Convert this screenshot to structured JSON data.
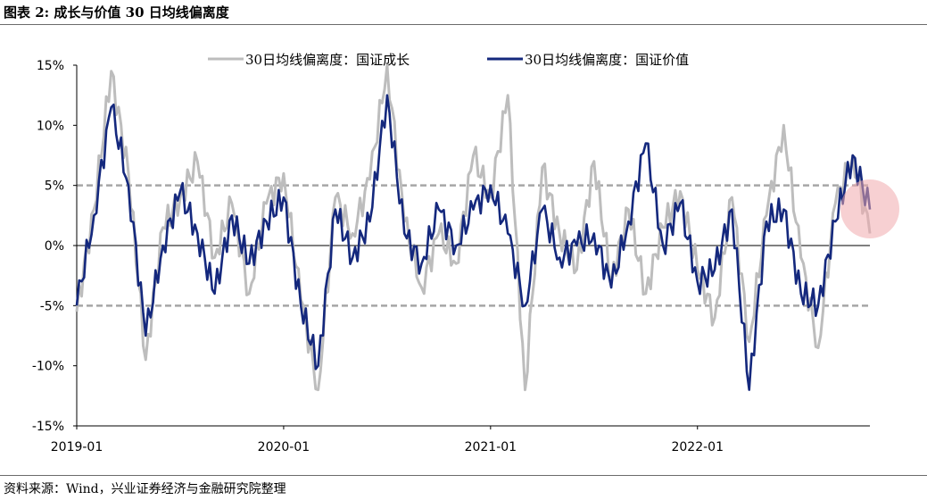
{
  "header": {
    "title": "图表 2:  成长与价值 30 日均线偏离度"
  },
  "footer": {
    "source": "资料来源：Wind，兴业证券经济与金融研究院整理"
  },
  "chart_data": {
    "type": "line",
    "title": "图表 2:  成长与价值 30 日均线偏离度",
    "xlabel": "",
    "ylabel": "",
    "x_tick_labels": [
      "2019-01",
      "2020-01",
      "2021-01",
      "2022-01"
    ],
    "y_tick_labels": [
      "15%",
      "10%",
      "5%",
      "0%",
      "-5%",
      "-10%",
      "-15%"
    ],
    "y_ticks": [
      15,
      10,
      5,
      0,
      -5,
      -10,
      -15
    ],
    "ylim": [
      -15,
      15
    ],
    "xlim": [
      "2019-01",
      "2022-11"
    ],
    "reference_lines": [
      5,
      0,
      -5
    ],
    "grid": false,
    "legend_position": "top",
    "x": [
      "2019-01",
      "2019-02",
      "2019-03",
      "2019-04",
      "2019-05",
      "2019-06",
      "2019-07",
      "2019-08",
      "2019-09",
      "2019-10",
      "2019-11",
      "2019-12",
      "2020-01",
      "2020-02",
      "2020-03",
      "2020-04",
      "2020-05",
      "2020-06",
      "2020-07",
      "2020-08",
      "2020-09",
      "2020-10",
      "2020-11",
      "2020-12",
      "2021-01",
      "2021-02",
      "2021-03",
      "2021-04",
      "2021-05",
      "2021-06",
      "2021-07",
      "2021-08",
      "2021-09",
      "2021-10",
      "2021-11",
      "2021-12",
      "2022-01",
      "2022-02",
      "2022-03",
      "2022-04",
      "2022-05",
      "2022-06",
      "2022-07",
      "2022-08",
      "2022-09",
      "2022-10",
      "2022-11"
    ],
    "series": [
      {
        "name": "30日均线偏离度：国证成长",
        "color": "#bdbdbd",
        "values": [
          -5.5,
          3,
          14.5,
          6,
          -9.5,
          1.5,
          4,
          7,
          -1,
          3.5,
          -4,
          3.5,
          6,
          -4.5,
          -12,
          4,
          1,
          5.5,
          15,
          2,
          -3.5,
          1,
          -1.5,
          7.5,
          4,
          12.5,
          -12,
          6.5,
          1,
          -2,
          7,
          -3,
          3,
          -4,
          1.5,
          4.5,
          -2,
          -6,
          4,
          -8,
          2.5,
          10,
          -1,
          -8.5,
          3.5,
          7.5,
          1
        ]
      },
      {
        "name": "30日均线偏离度：国证价值",
        "color": "#14287d",
        "values": [
          -5,
          2.5,
          11.5,
          5,
          -7.5,
          0,
          4.5,
          1,
          -4,
          2.5,
          -1.5,
          2,
          4,
          -5,
          -10,
          3,
          -1,
          2,
          12.5,
          1,
          -1.5,
          3,
          0,
          3,
          5,
          1,
          -5,
          3,
          -1,
          0,
          1,
          -3.5,
          2,
          8.5,
          0,
          3.5,
          -3,
          -2,
          3,
          -12,
          2,
          3,
          -4,
          -5,
          2,
          7.5,
          3
        ]
      }
    ]
  }
}
